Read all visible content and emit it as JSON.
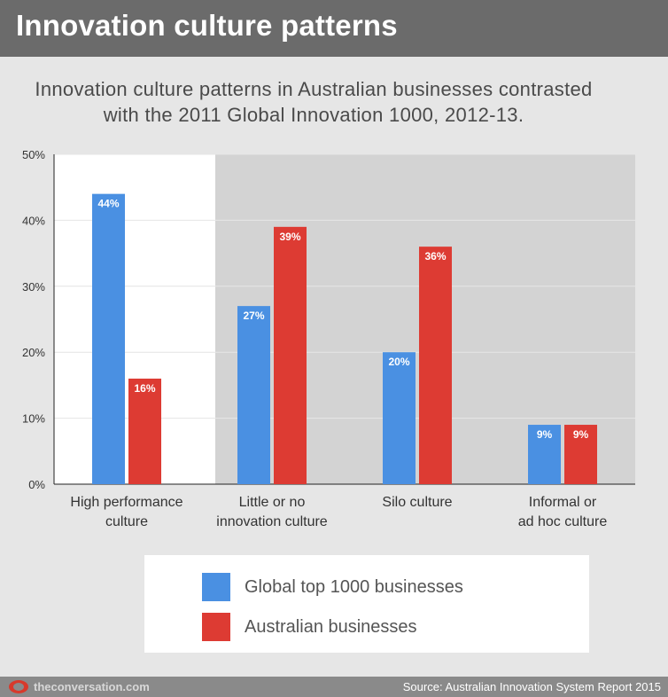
{
  "header": {
    "title": "Innovation culture patterns"
  },
  "subtitle": {
    "line1": "Innovation culture patterns in Australian businesses contrasted",
    "line2": "with the 2011 Global Innovation 1000, 2012-13."
  },
  "chart_data": {
    "type": "bar",
    "categories": [
      [
        "High performance",
        "culture"
      ],
      [
        "Little or no",
        "innovation culture"
      ],
      [
        "Silo culture"
      ],
      [
        "Informal or",
        "ad hoc culture"
      ]
    ],
    "series": [
      {
        "name": "Global top 1000 businesses",
        "color": "#4a90e2",
        "values": [
          44,
          27,
          20,
          9
        ],
        "labels": [
          "44%",
          "27%",
          "20%",
          "9%"
        ]
      },
      {
        "name": "Australian businesses",
        "color": "#dd3b33",
        "values": [
          16,
          39,
          36,
          9
        ],
        "labels": [
          "16%",
          "39%",
          "36%",
          "9%"
        ]
      }
    ],
    "y_ticks": [
      "0%",
      "10%",
      "20%",
      "30%",
      "40%",
      "50%"
    ],
    "ylim": [
      0,
      50
    ],
    "grid": true,
    "legend_position": "bottom",
    "highlighted_category": "High performance culture"
  },
  "legend": {
    "global_label": "Global top 1000 businesses",
    "australian_label": "Australian businesses",
    "global_color": "#4a90e2",
    "australian_color": "#dd3b33"
  },
  "footer": {
    "site": "theconversation.com",
    "source": "Source: Australian Innovation System Report 2015"
  }
}
